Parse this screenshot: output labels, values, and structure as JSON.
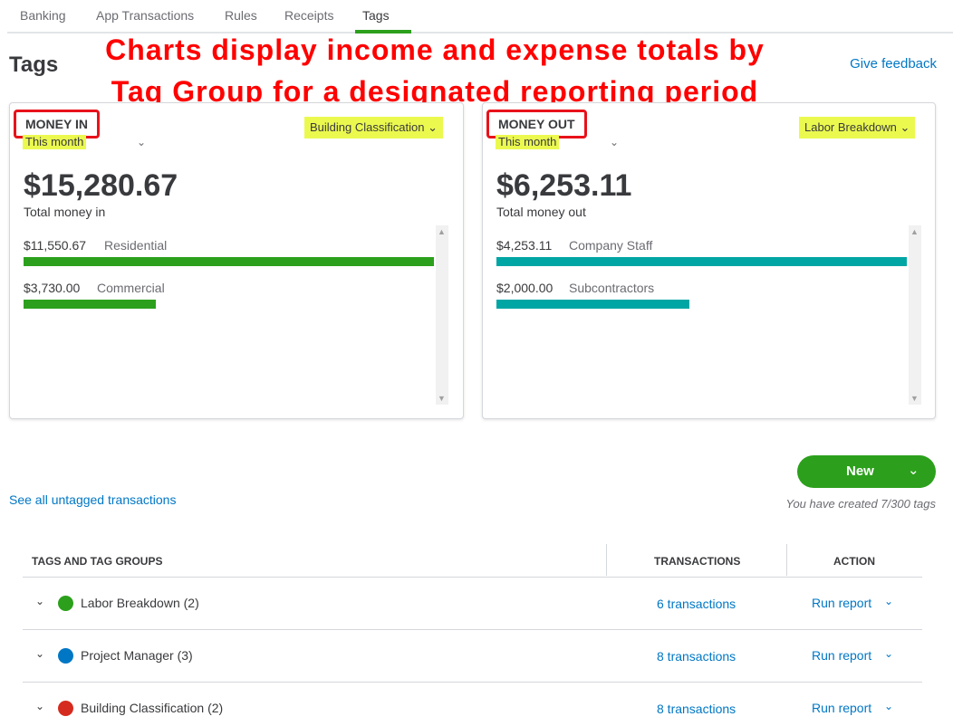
{
  "tabs": [
    {
      "label": "Banking"
    },
    {
      "label": "App Transactions"
    },
    {
      "label": "Rules"
    },
    {
      "label": "Receipts"
    },
    {
      "label": "Tags"
    }
  ],
  "active_tab": "Tags",
  "page_title": "Tags",
  "annotation": {
    "line1": "Charts display income and expense totals by",
    "line2": "Tag Group for a designated reporting period",
    "color": "#ff0000"
  },
  "feedback_link": "Give feedback",
  "money_in": {
    "label": "MONEY IN",
    "period": "This month",
    "group": "Building Classification",
    "total": "$15,280.67",
    "caption": "Total money in",
    "bar_color": "#2ca01c",
    "items": [
      {
        "amount": "$11,550.67",
        "name": "Residential",
        "value": 11550.67
      },
      {
        "amount": "$3,730.00",
        "name": "Commercial",
        "value": 3730.0
      }
    ]
  },
  "money_out": {
    "label": "MONEY OUT",
    "period": "This month",
    "group": "Labor Breakdown",
    "total": "$6,253.11",
    "caption": "Total money out",
    "bar_color": "#00a6a4",
    "items": [
      {
        "amount": "$4,253.11",
        "name": "Company Staff",
        "value": 4253.11
      },
      {
        "amount": "$2,000.00",
        "name": "Subcontractors",
        "value": 2000.0
      }
    ]
  },
  "new_button": {
    "label": "New"
  },
  "tag_count": "You have created 7/300 tags",
  "untagged_link": "See all untagged transactions",
  "table": {
    "headers": {
      "tags": "TAGS AND TAG GROUPS",
      "transactions": "TRANSACTIONS",
      "action": "ACTION"
    },
    "rows": [
      {
        "name": "Labor Breakdown (2)",
        "color": "#2ca01c",
        "transactions": "6 transactions",
        "action": "Run report"
      },
      {
        "name": "Project Manager (3)",
        "color": "#0077c5",
        "transactions": "8 transactions",
        "action": "Run report"
      },
      {
        "name": "Building Classification (2)",
        "color": "#d52b1e",
        "transactions": "8 transactions",
        "action": "Run report"
      }
    ]
  },
  "highlight_color": "#ebf94f",
  "accent_color": "#2ca01c",
  "link_color": "#0077c5"
}
